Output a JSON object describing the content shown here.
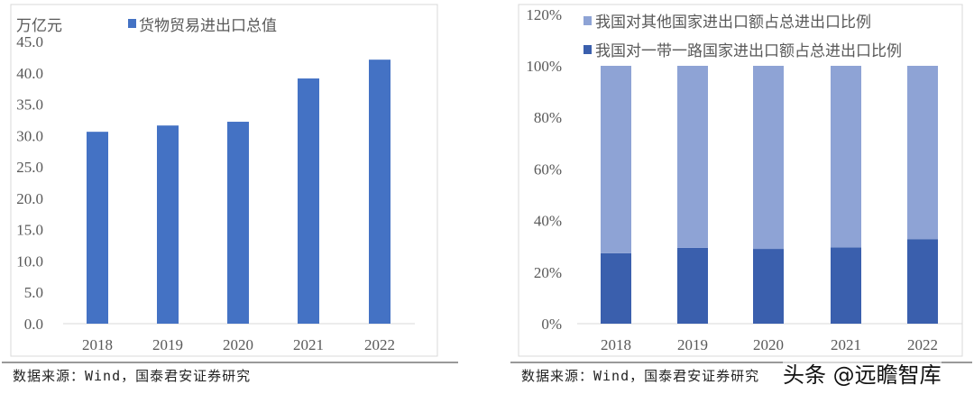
{
  "chart_data": [
    {
      "type": "bar",
      "unit_label": "万亿元",
      "categories": [
        "2018",
        "2019",
        "2020",
        "2021",
        "2022"
      ],
      "series": [
        {
          "name": "货物贸易进出口总值",
          "values": [
            30.6,
            31.6,
            32.2,
            39.1,
            42.1
          ],
          "color": "#4472C4"
        }
      ],
      "ylim": [
        0,
        45
      ],
      "yticks": [
        "0.0",
        "5.0",
        "10.0",
        "15.0",
        "20.0",
        "25.0",
        "30.0",
        "35.0",
        "40.0",
        "45.0"
      ],
      "legend": "top",
      "grid": false
    },
    {
      "type": "bar",
      "stacked": true,
      "categories": [
        "2018",
        "2019",
        "2020",
        "2021",
        "2022"
      ],
      "series": [
        {
          "name": "我国对一带一路国家进出口额占总进出口比例",
          "values": [
            27.3,
            29.4,
            29.0,
            29.6,
            32.8
          ],
          "color": "#3A5FAD"
        },
        {
          "name": "我国对其他国家进出口额占总进出口比例",
          "values": [
            72.7,
            70.6,
            71.0,
            70.4,
            67.2
          ],
          "color": "#8EA3D5"
        }
      ],
      "ylim": [
        0,
        120
      ],
      "yticks": [
        "0%",
        "20%",
        "40%",
        "60%",
        "80%",
        "100%",
        "120%"
      ],
      "legend": "top",
      "grid": false
    }
  ],
  "source_left": "数据来源：Wind，国泰君安证券研究",
  "source_right": "数据来源：Wind，国泰君安证券研究",
  "watermark": "头条 @远瞻智库"
}
